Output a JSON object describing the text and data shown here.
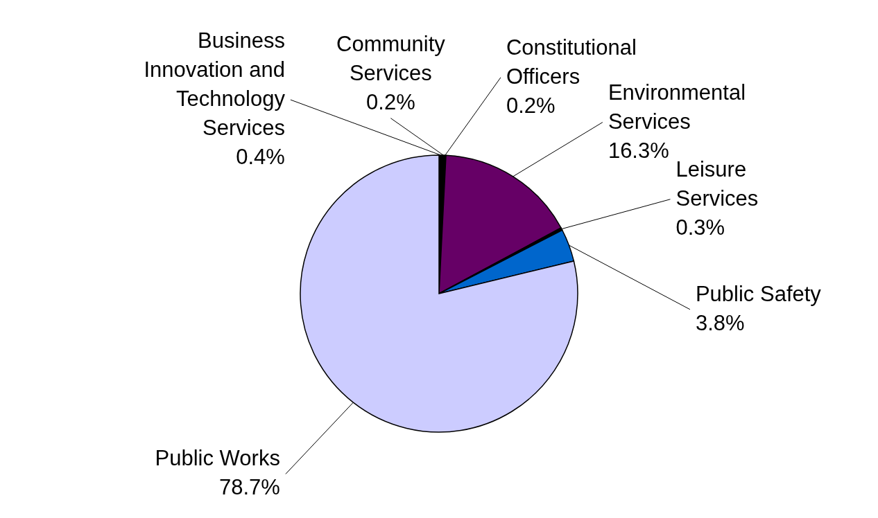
{
  "chart_data": {
    "type": "pie",
    "categories": [
      "Business Innovation and Technology Services",
      "Community Services",
      "Constitutional Officers",
      "Environmental Services",
      "Leisure Services",
      "Public Safety",
      "Public Works"
    ],
    "values": [
      0.4,
      0.2,
      0.2,
      16.3,
      0.3,
      3.8,
      78.7
    ],
    "colors": [
      "#000000",
      "#000000",
      "#000000",
      "#660066",
      "#000000",
      "#0066cc",
      "#ccccff"
    ],
    "value_labels": [
      "0.4%",
      "0.2%",
      "0.2%",
      "16.3%",
      "0.3%",
      "3.8%",
      "78.7%"
    ]
  }
}
